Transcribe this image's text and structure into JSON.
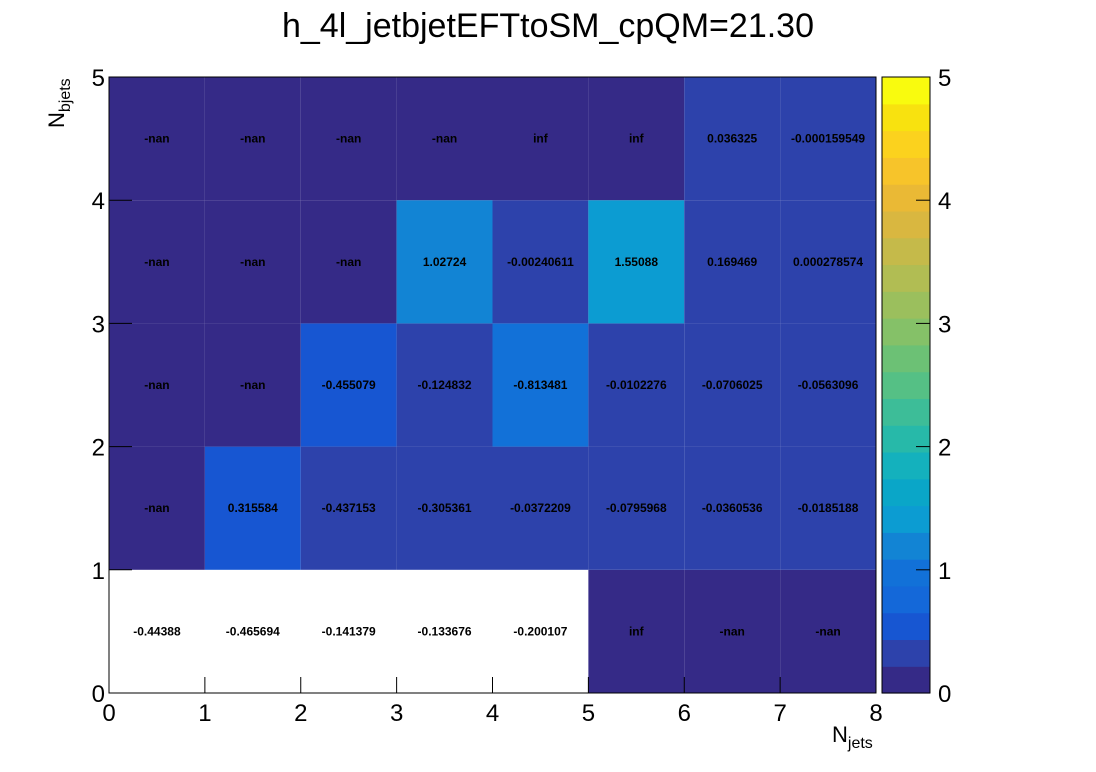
{
  "chart_data": {
    "type": "heatmap",
    "title": "h_4l_jetbjetEFTtoSM_cpQM=21.30",
    "xlabel": "N",
    "xlabel_sub": "jets",
    "ylabel": "N",
    "ylabel_sub": "bjets",
    "xlim": [
      0,
      8
    ],
    "ylim": [
      0,
      5
    ],
    "zlim": [
      0,
      5
    ],
    "x_ticks": [
      "0",
      "1",
      "2",
      "3",
      "4",
      "5",
      "6",
      "7",
      "8"
    ],
    "y_ticks": [
      "0",
      "1",
      "2",
      "3",
      "4",
      "5"
    ],
    "z_ticks": [
      "0",
      "1",
      "2",
      "3",
      "4",
      "5"
    ],
    "palette": "kBird",
    "colorbar": "right",
    "grid": false,
    "rows": [
      {
        "y": 0.5,
        "labels": [
          "-0.44388",
          "-0.465694",
          "-0.141379",
          "-0.133676",
          "-0.200107",
          "inf",
          "-nan",
          "-nan"
        ],
        "z": [
          -0.44388,
          -0.465694,
          -0.141379,
          -0.133676,
          -0.200107,
          null,
          null,
          null
        ],
        "fill": [
          "#ffffff",
          "#ffffff",
          "#ffffff",
          "#ffffff",
          "#ffffff",
          "#352a87",
          "#352a87",
          "#352a87"
        ]
      },
      {
        "y": 1.5,
        "labels": [
          "-nan",
          "0.315584",
          "-0.437153",
          "-0.305361",
          "-0.0372209",
          "-0.0795968",
          "-0.0360536",
          "-0.0185188"
        ],
        "z": [
          null,
          0.315584,
          -0.437153,
          -0.305361,
          -0.0372209,
          -0.0795968,
          -0.0360536,
          -0.0185188
        ],
        "fill": [
          "#352a87",
          "#1756d2",
          "#2d42ab",
          "#2d42ab",
          "#2d42ab",
          "#2d42ab",
          "#2d42ab",
          "#2d42ab"
        ]
      },
      {
        "y": 2.5,
        "labels": [
          "-nan",
          "-nan",
          "-0.455079",
          "-0.124832",
          "-0.813481",
          "-0.0102276",
          "-0.0706025",
          "-0.0563096"
        ],
        "z": [
          null,
          null,
          -0.455079,
          -0.124832,
          -0.813481,
          -0.0102276,
          -0.0706025,
          -0.0563096
        ],
        "fill": [
          "#352a87",
          "#352a87",
          "#1756d2",
          "#2d42ab",
          "#1271d8",
          "#2d42ab",
          "#2d42ab",
          "#2d42ab"
        ]
      },
      {
        "y": 3.5,
        "labels": [
          "-nan",
          "-nan",
          "-nan",
          "1.02724",
          "-0.00240611",
          "1.55088",
          "0.169469",
          "0.000278574"
        ],
        "z": [
          null,
          null,
          null,
          1.02724,
          -0.00240611,
          1.55088,
          0.169469,
          0.000278574
        ],
        "fill": [
          "#352a87",
          "#352a87",
          "#352a87",
          "#1284d4",
          "#2d42ab",
          "#0c9cd2",
          "#2d42ab",
          "#2d42ab"
        ]
      },
      {
        "y": 4.5,
        "labels": [
          "-nan",
          "-nan",
          "-nan",
          "-nan",
          "inf",
          "inf",
          "0.036325",
          "-0.000159549"
        ],
        "z": [
          null,
          null,
          null,
          null,
          null,
          null,
          0.036325,
          -0.000159549
        ],
        "fill": [
          "#352a87",
          "#352a87",
          "#352a87",
          "#352a87",
          "#352a87",
          "#352a87",
          "#2d42ab",
          "#2d42ab"
        ]
      }
    ],
    "colorbar_colors": [
      "#352a87",
      "#2d42ab",
      "#1756d2",
      "#1468d9",
      "#1271d8",
      "#1284d4",
      "#0c9cd2",
      "#0aa6c8",
      "#14b1bd",
      "#27b9a9",
      "#3dbd98",
      "#55c085",
      "#6cc175",
      "#85c168",
      "#9bbf5d",
      "#b1bd53",
      "#c5ba4a",
      "#d9b740",
      "#eab935",
      "#f7c42a",
      "#fbd21e",
      "#f8e20f",
      "#f9fb0e"
    ]
  }
}
